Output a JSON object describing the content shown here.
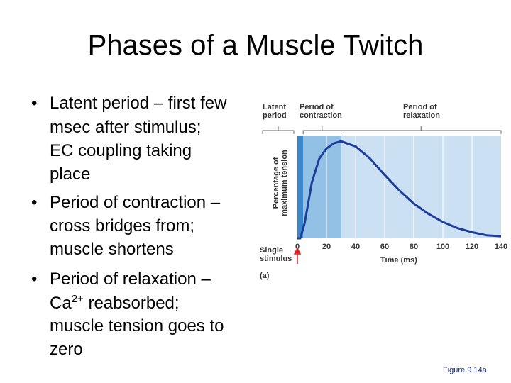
{
  "title": "Phases of a Muscle Twitch",
  "bullets": [
    {
      "lines": [
        "Latent period – first few",
        "msec after stimulus;",
        "EC coupling taking",
        "place"
      ]
    },
    {
      "lines": [
        "Period of contraction –",
        "cross bridges from;",
        "muscle shortens"
      ]
    },
    {
      "lines": [
        "Period of relaxation –",
        {
          "parts": [
            "Ca",
            "2+",
            " reabsorbed;"
          ]
        },
        "muscle tension goes to",
        "zero"
      ]
    }
  ],
  "chart_data": {
    "type": "line",
    "x_label": "Time (ms)",
    "y_label": [
      "Percentage of",
      "maximum tension"
    ],
    "stimulus_label": [
      "Single",
      "stimulus"
    ],
    "panel_label": "(a)",
    "xlim": [
      0,
      140
    ],
    "ylim": [
      0,
      100
    ],
    "xticks": [
      0,
      20,
      40,
      60,
      80,
      100,
      120,
      140
    ],
    "grid": true,
    "phases": [
      {
        "label": [
          "Latent",
          "period"
        ],
        "range": [
          0,
          4
        ],
        "color": "#3a88cc"
      },
      {
        "label": [
          "Period of",
          "contraction"
        ],
        "range": [
          4,
          30
        ],
        "color": "#93c1e6"
      },
      {
        "label": [
          "Period of",
          "relaxation"
        ],
        "range": [
          30,
          140
        ],
        "color": "#cbe1f3"
      }
    ],
    "x": [
      0,
      2,
      5,
      10,
      15,
      20,
      25,
      30,
      40,
      50,
      60,
      70,
      80,
      90,
      100,
      110,
      120,
      130,
      140
    ],
    "series": [
      {
        "color": "#1d3c9c",
        "values": [
          0,
          0,
          15,
          55,
          78,
          88,
          93,
          95,
          90,
          78,
          62,
          47,
          34,
          24,
          16,
          10,
          6,
          3,
          2
        ]
      }
    ]
  },
  "caption": "Figure 9.14a"
}
